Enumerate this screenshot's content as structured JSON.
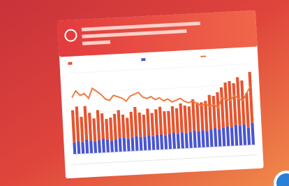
{
  "chart_data": {
    "type": "bar",
    "stacked": true,
    "ylim": [
      0,
      70
    ],
    "y2lim": [
      0,
      100
    ],
    "series": [
      {
        "color": "#4a55d0",
        "values": [
          10,
          11,
          10,
          12,
          11,
          10,
          11,
          12,
          11,
          10,
          11,
          12,
          12,
          11,
          12,
          13,
          12,
          12,
          13,
          12,
          13,
          13,
          12,
          13,
          14,
          13,
          14,
          13,
          14,
          15,
          14,
          15,
          14,
          15,
          16,
          15,
          16,
          17,
          16,
          18,
          17,
          18,
          15,
          19
        ]
      },
      {
        "color": "#e8542e",
        "values": [
          28,
          30,
          22,
          29,
          24,
          20,
          26,
          22,
          18,
          20,
          22,
          24,
          20,
          18,
          22,
          25,
          21,
          19,
          23,
          20,
          22,
          24,
          21,
          20,
          23,
          22,
          25,
          24,
          22,
          27,
          25,
          24,
          26,
          30,
          28,
          32,
          35,
          38,
          40,
          36,
          42,
          38,
          30,
          44
        ]
      },
      {
        "type": "line",
        "axis": "y2",
        "color": "#ef7a3c",
        "values": [
          70,
          78,
          72,
          74,
          68,
          80,
          76,
          72,
          66,
          64,
          70,
          68,
          66,
          62,
          68,
          70,
          72,
          66,
          64,
          66,
          62,
          64,
          60,
          62,
          58,
          60,
          62,
          58,
          56,
          58,
          54,
          52,
          54,
          50,
          52,
          48,
          60,
          58,
          56,
          62,
          58,
          55,
          64,
          72
        ]
      }
    ]
  }
}
